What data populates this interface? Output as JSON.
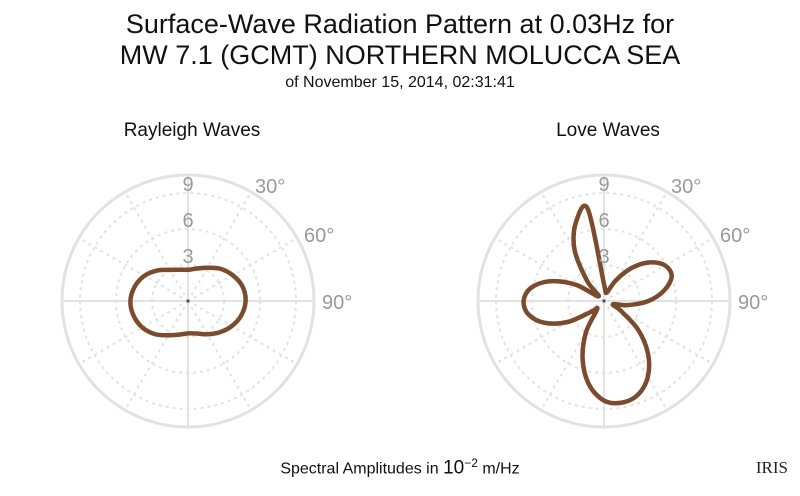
{
  "title_line1": "Surface-Wave Radiation Pattern at 0.03Hz for",
  "title_line2": "MW 7.1 (GCMT) NORTHERN MOLUCCA SEA",
  "subtitle": "of November 15, 2014, 02:31:41",
  "footer": {
    "prefix": "Spectral Amplitudes in ",
    "base": "10",
    "exponent": "−2",
    "unit": " m/Hz"
  },
  "logo_text": "IRIS",
  "colors": {
    "pattern": "#7a4b2c",
    "grid": "#e2e2e2",
    "label": "#9a9a9a"
  },
  "chart_data": [
    {
      "type": "polar",
      "title": "Rayleigh Waves",
      "angle_ticks": [
        30,
        60,
        90
      ],
      "angle_tick_labels": [
        "30°",
        "60°",
        "90°"
      ],
      "radial_ticks": [
        3,
        6,
        9
      ],
      "radial_tick_labels": [
        "3",
        "6",
        "9"
      ],
      "rmax": 10.5,
      "series": [
        {
          "azimuth_deg": [
            0,
            15,
            30,
            45,
            60,
            75,
            90,
            105,
            120,
            135,
            150,
            165,
            180,
            195,
            210,
            225,
            240,
            255,
            270,
            285,
            300,
            315,
            330,
            345
          ],
          "amplitude": [
            2.6,
            2.8,
            3.2,
            3.8,
            4.3,
            4.7,
            4.8,
            4.6,
            4.2,
            3.7,
            3.2,
            2.8,
            2.7,
            2.9,
            3.3,
            3.9,
            4.4,
            4.7,
            4.8,
            4.6,
            4.2,
            3.6,
            3.0,
            2.7
          ]
        }
      ]
    },
    {
      "type": "polar",
      "title": "Love Waves",
      "angle_ticks": [
        30,
        60,
        90
      ],
      "angle_tick_labels": [
        "30°",
        "60°",
        "90°"
      ],
      "radial_ticks": [
        3,
        6,
        9
      ],
      "radial_tick_labels": [
        "3",
        "6",
        "9"
      ],
      "rmax": 10.5,
      "series": [
        {
          "azimuth_deg": [
            0,
            10,
            20,
            30,
            40,
            50,
            60,
            70,
            80,
            90,
            100,
            110,
            120,
            130,
            140,
            150,
            160,
            170,
            180,
            190,
            200,
            210,
            220,
            230,
            240,
            250,
            260,
            270,
            280,
            290,
            300,
            310,
            320,
            330,
            340,
            350
          ],
          "amplitude": [
            1.4,
            0.8,
            0.8,
            2.0,
            3.6,
            5.0,
            5.9,
            6.0,
            5.1,
            3.7,
            2.0,
            0.8,
            1.6,
            3.7,
            5.7,
            7.3,
            8.3,
            8.6,
            8.3,
            7.1,
            5.2,
            3.0,
            0.9,
            1.4,
            3.5,
            5.3,
            6.4,
            6.7,
            6.2,
            4.8,
            2.7,
            0.6,
            2.2,
            4.9,
            6.9,
            7.8
          ]
        }
      ]
    }
  ]
}
